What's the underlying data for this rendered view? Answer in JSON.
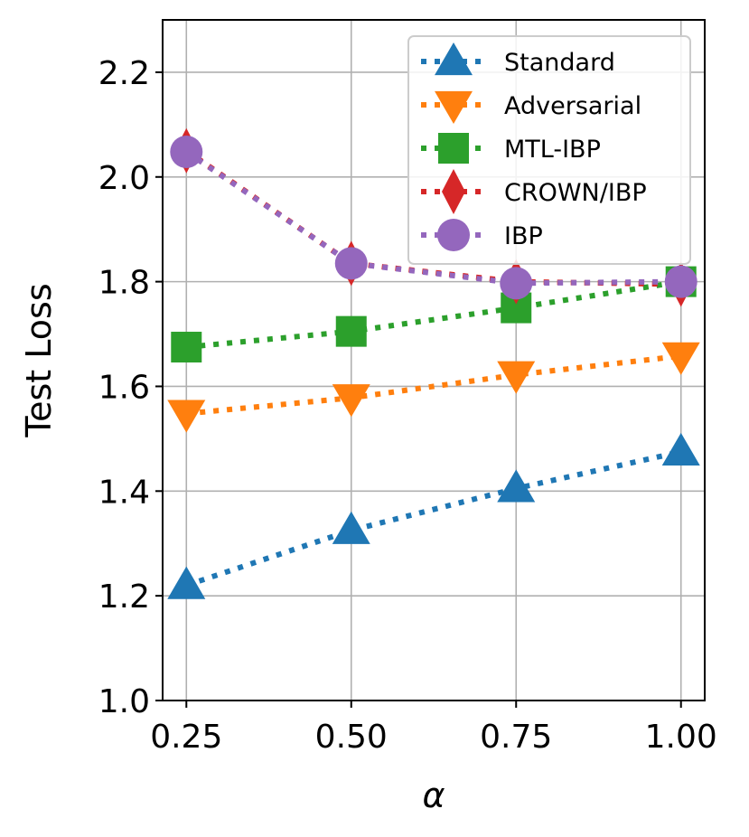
{
  "chart_data": {
    "type": "line",
    "title": "",
    "xlabel": "α",
    "ylabel": "Test Loss",
    "x": [
      0.25,
      0.5,
      0.75,
      1.0
    ],
    "x_tick_labels": [
      "0.25",
      "0.50",
      "0.75",
      "1.00"
    ],
    "y_ticks": [
      1.0,
      1.2,
      1.4,
      1.6,
      1.8,
      2.0,
      2.2
    ],
    "y_tick_labels": [
      "1.0",
      "1.2",
      "1.4",
      "1.6",
      "1.8",
      "2.0",
      "2.2"
    ],
    "xlim": [
      0.214,
      1.036
    ],
    "ylim": [
      1.0,
      2.3
    ],
    "grid": true,
    "legend_position": "top-right",
    "series": [
      {
        "name": "Standard",
        "color": "#1f77b4",
        "marker": "triangle-up",
        "values": [
          1.22,
          1.325,
          1.405,
          1.475
        ]
      },
      {
        "name": "Adversarial",
        "color": "#ff7f0e",
        "marker": "triangle-down",
        "values": [
          1.548,
          1.578,
          1.622,
          1.658
        ]
      },
      {
        "name": "MTL-IBP",
        "color": "#2ca02c",
        "marker": "square",
        "values": [
          1.675,
          1.705,
          1.75,
          1.8
        ]
      },
      {
        "name": "CROWN/IBP",
        "color": "#d62728",
        "marker": "diamond",
        "values": [
          2.05,
          1.835,
          1.8,
          1.795
        ]
      },
      {
        "name": "IBP",
        "color": "#9467bd",
        "marker": "circle",
        "values": [
          2.048,
          1.835,
          1.797,
          1.8
        ]
      }
    ]
  }
}
